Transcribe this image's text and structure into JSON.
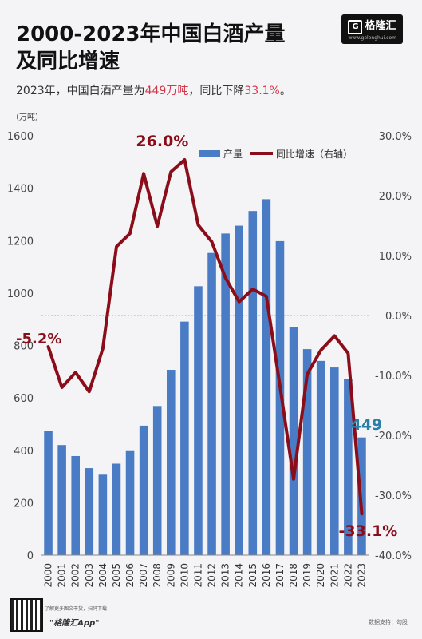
{
  "header": {
    "title_line1": "2000-2023年中国白酒产量",
    "title_line2": "及同比增速",
    "subtitle_pre": "2023年，中国白酒产量为",
    "subtitle_highlight1": "449万吨",
    "subtitle_mid": "，同比下降",
    "subtitle_highlight2": "33.1%",
    "subtitle_post": "。",
    "logo_text": "格隆汇",
    "logo_url": "www.gelonghui.com"
  },
  "footer": {
    "qr_note": "了解更多图文干货，扫码下载",
    "app_name": "\"格隆汇App\"",
    "source": "数据支持：勾股"
  },
  "colors": {
    "bar": "#4a7cc5",
    "line": "#8b0d1a",
    "highlight": "#d23a4c",
    "value_label": "#2a7fa6"
  },
  "chart_data": {
    "type": "bar",
    "left_unit": "（万吨）",
    "categories": [
      "2000",
      "2001",
      "2002",
      "2003",
      "2004",
      "2005",
      "2006",
      "2007",
      "2008",
      "2009",
      "2010",
      "2011",
      "2012",
      "2013",
      "2014",
      "2015",
      "2016",
      "2017",
      "2018",
      "2019",
      "2020",
      "2021",
      "2022",
      "2023"
    ],
    "series": [
      {
        "name": "产量",
        "axis": "left",
        "type": "bar",
        "values": [
          475,
          420,
          378,
          332,
          307,
          349,
          397,
          494,
          569,
          707,
          891,
          1026,
          1153,
          1227,
          1257,
          1313,
          1358,
          1198,
          871,
          786,
          741,
          716,
          671,
          449
        ]
      },
      {
        "name": "同比增速（右轴）",
        "axis": "right",
        "type": "line",
        "values": [
          -5.2,
          -12,
          -9.5,
          -12.7,
          -5.5,
          11.5,
          13.7,
          23.7,
          14.9,
          24.0,
          26.0,
          15.1,
          12.3,
          6.3,
          2.3,
          4.4,
          3.2,
          -11.8,
          -27.3,
          -9.8,
          -5.8,
          -3.4,
          -6.3,
          -33.1
        ]
      }
    ],
    "left_axis": {
      "ylim": [
        0,
        1600
      ],
      "ticks": [
        "0",
        "200",
        "400",
        "600",
        "800",
        "1000",
        "1200",
        "1400",
        "1600"
      ]
    },
    "right_axis": {
      "ylim": [
        -40,
        30
      ],
      "ticks": [
        "-40.0%",
        "-30.0%",
        "-20.0%",
        "-10.0%",
        "0.0%",
        "10.0%",
        "20.0%",
        "30.0%"
      ]
    },
    "annotations": [
      {
        "text": "-5.2%",
        "category": "2000",
        "series": "同比增速（右轴）"
      },
      {
        "text": "26.0%",
        "category": "2010",
        "series": "同比增速（右轴）"
      },
      {
        "text": "449",
        "category": "2023",
        "series": "产量"
      },
      {
        "text": "-33.1%",
        "category": "2023",
        "series": "同比增速（右轴）"
      }
    ],
    "zero_reference_line": true,
    "legend_position": "top-right"
  }
}
